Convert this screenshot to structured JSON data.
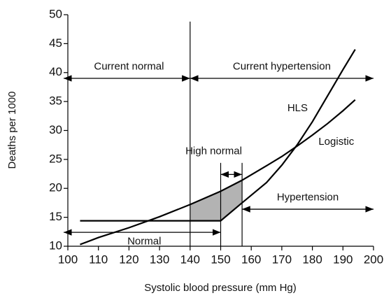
{
  "chart_data": {
    "type": "line",
    "xlabel": "Systolic blood pressure (mm Hg)",
    "ylabel": "Deaths per 1000",
    "xlim": [
      100,
      200
    ],
    "xticks": [
      100,
      110,
      120,
      130,
      140,
      150,
      160,
      170,
      180,
      190,
      200
    ],
    "ylim": [
      10,
      50
    ],
    "yticks": [
      10,
      15,
      20,
      25,
      30,
      35,
      40,
      45,
      50
    ],
    "series": [
      {
        "name": "HLS",
        "color": "#000000",
        "x": [
          104,
          150,
          157,
          165,
          170,
          175,
          180,
          185,
          190,
          194
        ],
        "values": [
          14.4,
          14.4,
          17.5,
          21,
          24,
          27.5,
          31.5,
          36,
          40.5,
          44
        ]
      },
      {
        "name": "Logistic",
        "color": "#000000",
        "x": [
          104,
          110,
          120,
          130,
          140,
          150,
          157,
          165,
          170,
          175,
          180,
          185,
          190,
          194
        ],
        "values": [
          10.3,
          11.5,
          13.2,
          15.1,
          17.2,
          19.5,
          21.4,
          23.9,
          25.5,
          27.3,
          29.2,
          31.2,
          33.4,
          35.3
        ]
      }
    ],
    "reference_lines": [
      140,
      150,
      157
    ],
    "ranges": [
      {
        "text": "Current normal",
        "x": [
          100,
          140
        ]
      },
      {
        "text": "Current hypertension",
        "x": [
          140,
          200
        ]
      },
      {
        "text": "High normal",
        "x": [
          150,
          157
        ]
      },
      {
        "text": "Hypertension",
        "x": [
          157,
          200
        ]
      },
      {
        "text": "Normal",
        "x": [
          100,
          150
        ]
      }
    ]
  }
}
